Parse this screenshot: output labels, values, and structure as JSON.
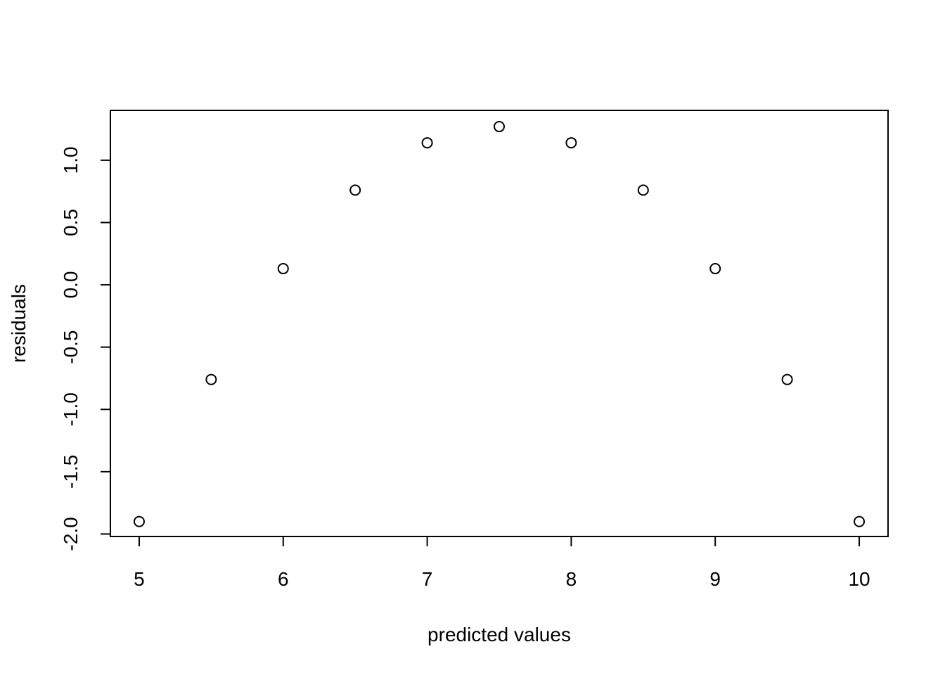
{
  "chart_data": {
    "type": "scatter",
    "x_label": "predicted values",
    "y_label": "residuals",
    "x": [
      5,
      5.5,
      6,
      6.5,
      7,
      7.5,
      8,
      8.5,
      9,
      9.5,
      10
    ],
    "values": [
      -1.9,
      -0.76,
      0.13,
      0.76,
      1.14,
      1.27,
      1.14,
      0.76,
      0.13,
      -0.76,
      -1.9
    ],
    "color": "#000000",
    "xlim": [
      4.8,
      10.2
    ],
    "xticks": [
      5,
      6,
      7,
      8,
      9,
      10
    ],
    "ylim": [
      -2.02,
      1.4
    ],
    "yticks": [
      {
        "value": -2,
        "label": "-2.0"
      },
      -1.5,
      {
        "value": -1,
        "label": "-1.0"
      },
      -0.5,
      {
        "value": 0,
        "label": "0.0"
      },
      0.5,
      {
        "value": 1,
        "label": "1.0"
      }
    ],
    "grid": false
  }
}
